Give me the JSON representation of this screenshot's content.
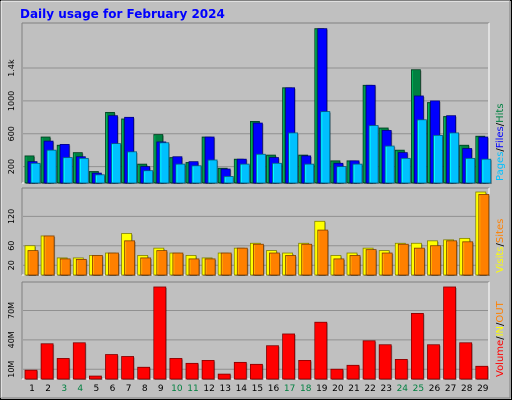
{
  "title": "Daily usage for February 2024",
  "chart_data": [
    {
      "type": "bar",
      "panel": "pages-files-hits",
      "categories": [
        "1",
        "2",
        "3",
        "4",
        "5",
        "6",
        "7",
        "8",
        "9",
        "10",
        "11",
        "12",
        "13",
        "14",
        "15",
        "16",
        "17",
        "18",
        "19",
        "20",
        "21",
        "22",
        "23",
        "24",
        "25",
        "26",
        "27",
        "28",
        "29"
      ],
      "weekend_days": [
        "3",
        "4",
        "10",
        "11",
        "17",
        "18",
        "24",
        "25"
      ],
      "yticks": [
        "200",
        "600",
        "1000",
        "1.4k"
      ],
      "ylim": [
        0,
        1900
      ],
      "legend_parts": [
        "Pages",
        "/",
        "Files",
        "/",
        "Hits"
      ],
      "series": [
        {
          "name": "Hits",
          "color": "#008040",
          "values": [
            330,
            560,
            460,
            370,
            140,
            860,
            780,
            230,
            590,
            310,
            250,
            560,
            180,
            290,
            750,
            340,
            1160,
            340,
            1880,
            270,
            270,
            1190,
            670,
            400,
            1380,
            980,
            810,
            460,
            570
          ]
        },
        {
          "name": "Files",
          "color": "#0000ff",
          "values": [
            260,
            510,
            470,
            320,
            120,
            820,
            800,
            200,
            500,
            320,
            260,
            560,
            170,
            290,
            730,
            310,
            1160,
            330,
            1880,
            240,
            270,
            1190,
            640,
            370,
            1060,
            1000,
            820,
            420,
            560
          ]
        },
        {
          "name": "Pages",
          "color": "#00c0ff",
          "values": [
            240,
            400,
            310,
            300,
            100,
            480,
            380,
            150,
            490,
            230,
            210,
            280,
            80,
            230,
            350,
            240,
            610,
            230,
            870,
            200,
            230,
            700,
            450,
            300,
            770,
            580,
            610,
            300,
            290
          ]
        }
      ]
    },
    {
      "type": "bar",
      "panel": "visits-sites",
      "categories": [
        "1",
        "2",
        "3",
        "4",
        "5",
        "6",
        "7",
        "8",
        "9",
        "10",
        "11",
        "12",
        "13",
        "14",
        "15",
        "16",
        "17",
        "18",
        "19",
        "20",
        "21",
        "22",
        "23",
        "24",
        "25",
        "26",
        "27",
        "28",
        "29"
      ],
      "yticks": [
        "20",
        "60",
        "120"
      ],
      "ylim": [
        0,
        170
      ],
      "legend_parts": [
        "Visits",
        "/",
        "Sites"
      ],
      "series": [
        {
          "name": "Visits",
          "color": "#ffff00",
          "values": [
            60,
            80,
            35,
            35,
            40,
            45,
            85,
            40,
            55,
            45,
            40,
            35,
            45,
            55,
            65,
            50,
            45,
            65,
            110,
            40,
            45,
            55,
            50,
            65,
            65,
            70,
            72,
            75,
            170
          ]
        },
        {
          "name": "Sites",
          "color": "#ff8000",
          "values": [
            50,
            80,
            33,
            32,
            40,
            45,
            70,
            35,
            50,
            45,
            33,
            33,
            45,
            55,
            63,
            45,
            40,
            63,
            92,
            33,
            40,
            52,
            45,
            63,
            55,
            60,
            70,
            68,
            165
          ]
        }
      ]
    },
    {
      "type": "bar",
      "panel": "volume",
      "categories": [
        "1",
        "2",
        "3",
        "4",
        "5",
        "6",
        "7",
        "8",
        "9",
        "10",
        "11",
        "12",
        "13",
        "14",
        "15",
        "16",
        "17",
        "18",
        "19",
        "20",
        "21",
        "22",
        "23",
        "24",
        "25",
        "26",
        "27",
        "28",
        "29"
      ],
      "yticks": [
        "10M",
        "40M",
        "70M"
      ],
      "ylim": [
        0,
        95
      ],
      "legend_parts": [
        "Volume",
        "/",
        "IN",
        "/",
        "OUT"
      ],
      "series": [
        {
          "name": "Volume",
          "color": "#ff0000",
          "values": [
            9,
            36,
            21,
            37,
            3,
            25,
            23,
            12,
            94,
            21,
            16,
            19,
            5,
            17,
            15,
            34,
            46,
            19,
            58,
            10,
            14,
            39,
            35,
            20,
            67,
            35,
            94,
            37,
            13
          ]
        }
      ]
    }
  ]
}
